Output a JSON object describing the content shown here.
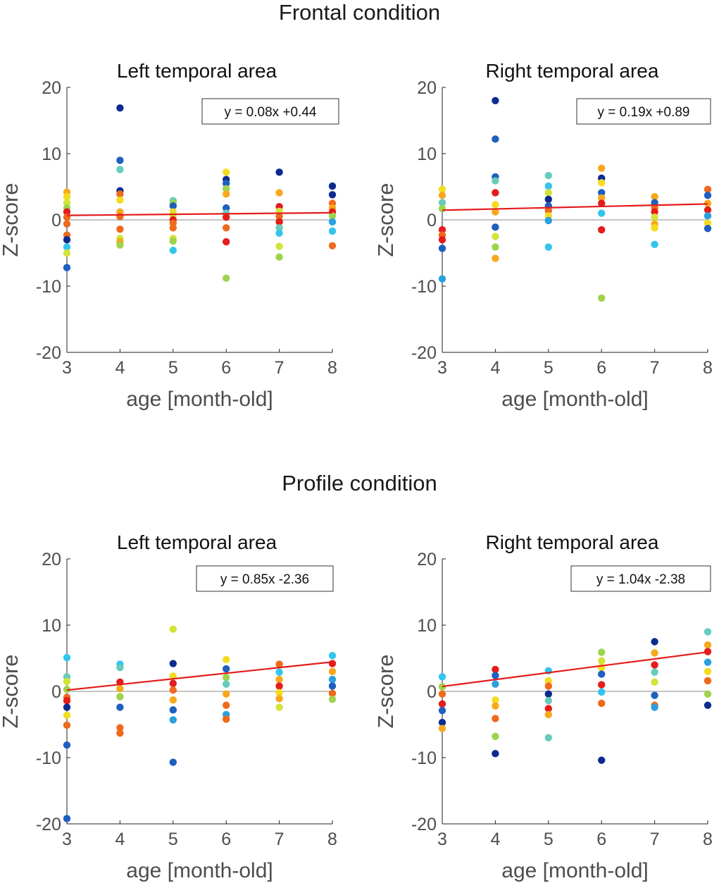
{
  "conditions": [
    "Frontal condition",
    "Profile condition"
  ],
  "palette": [
    "#0d2b8f",
    "#1f5fbf",
    "#2aa0de",
    "#33c5ec",
    "#66ccbb",
    "#9ed34d",
    "#d2e33a",
    "#f4dc1f",
    "#f7a81d",
    "#ee6a1d",
    "#e41c1c"
  ],
  "fit_line_color": "#e41c1c",
  "zero_line_color": "#b0b0b0",
  "chart_data": [
    {
      "type": "scatter",
      "condition": "Frontal condition",
      "title": "Left temporal area",
      "xlabel": "age [month-old]",
      "ylabel": "Z-score",
      "xlim": [
        3,
        8
      ],
      "ylim": [
        -20,
        20
      ],
      "xticks": [
        3,
        4,
        5,
        6,
        7,
        8
      ],
      "yticks": [
        20,
        10,
        0,
        -10,
        -20
      ],
      "equation": "y = 0.08x +0.44",
      "fit": {
        "slope": 0.08,
        "intercept": 0.44
      },
      "points": [
        {
          "x": 3,
          "y": 4.2,
          "c": 8
        },
        {
          "x": 3,
          "y": 3.5,
          "c": 7
        },
        {
          "x": 3,
          "y": 2.6,
          "c": 6
        },
        {
          "x": 3,
          "y": 1.8,
          "c": 5
        },
        {
          "x": 3,
          "y": 1.2,
          "c": 10
        },
        {
          "x": 3,
          "y": 0.4,
          "c": 9
        },
        {
          "x": 3,
          "y": -0.6,
          "c": 9
        },
        {
          "x": 3,
          "y": -2.3,
          "c": 9
        },
        {
          "x": 3,
          "y": -3.0,
          "c": 0
        },
        {
          "x": 3,
          "y": -4.1,
          "c": 3
        },
        {
          "x": 3,
          "y": -5.0,
          "c": 6
        },
        {
          "x": 3,
          "y": -7.2,
          "c": 1
        },
        {
          "x": 4,
          "y": 16.9,
          "c": 0
        },
        {
          "x": 4,
          "y": 9.0,
          "c": 1
        },
        {
          "x": 4,
          "y": 7.6,
          "c": 4
        },
        {
          "x": 4,
          "y": 4.4,
          "c": 0
        },
        {
          "x": 4,
          "y": 3.9,
          "c": 9
        },
        {
          "x": 4,
          "y": 3.0,
          "c": 7
        },
        {
          "x": 4,
          "y": 1.2,
          "c": 8
        },
        {
          "x": 4,
          "y": 0.5,
          "c": 9
        },
        {
          "x": 4,
          "y": -1.4,
          "c": 9
        },
        {
          "x": 4,
          "y": -2.8,
          "c": 6
        },
        {
          "x": 4,
          "y": -3.3,
          "c": 8
        },
        {
          "x": 4,
          "y": -3.8,
          "c": 5
        },
        {
          "x": 5,
          "y": 2.9,
          "c": 4
        },
        {
          "x": 5,
          "y": 2.5,
          "c": 5
        },
        {
          "x": 5,
          "y": 2.1,
          "c": 1
        },
        {
          "x": 5,
          "y": 1.2,
          "c": 7
        },
        {
          "x": 5,
          "y": 0.7,
          "c": 6
        },
        {
          "x": 5,
          "y": 0.0,
          "c": 10
        },
        {
          "x": 5,
          "y": -0.5,
          "c": 9
        },
        {
          "x": 5,
          "y": -1.2,
          "c": 9
        },
        {
          "x": 5,
          "y": -2.8,
          "c": 6
        },
        {
          "x": 5,
          "y": -3.2,
          "c": 5
        },
        {
          "x": 5,
          "y": -4.6,
          "c": 3
        },
        {
          "x": 6,
          "y": 7.2,
          "c": 7
        },
        {
          "x": 6,
          "y": 6.1,
          "c": 0
        },
        {
          "x": 6,
          "y": 5.5,
          "c": 1
        },
        {
          "x": 6,
          "y": 4.7,
          "c": 5
        },
        {
          "x": 6,
          "y": 3.9,
          "c": 8
        },
        {
          "x": 6,
          "y": 1.8,
          "c": 1
        },
        {
          "x": 6,
          "y": 1.0,
          "c": 4
        },
        {
          "x": 6,
          "y": 0.4,
          "c": 10
        },
        {
          "x": 6,
          "y": -1.2,
          "c": 9
        },
        {
          "x": 6,
          "y": -3.3,
          "c": 10
        },
        {
          "x": 6,
          "y": -8.8,
          "c": 5
        },
        {
          "x": 7,
          "y": 7.2,
          "c": 0
        },
        {
          "x": 7,
          "y": 4.1,
          "c": 8
        },
        {
          "x": 7,
          "y": 2.0,
          "c": 10
        },
        {
          "x": 7,
          "y": 1.3,
          "c": 6
        },
        {
          "x": 7,
          "y": 0.5,
          "c": 9
        },
        {
          "x": 7,
          "y": -0.3,
          "c": 10
        },
        {
          "x": 7,
          "y": -1.2,
          "c": 4
        },
        {
          "x": 7,
          "y": -2.0,
          "c": 3
        },
        {
          "x": 7,
          "y": -4.0,
          "c": 6
        },
        {
          "x": 7,
          "y": -5.6,
          "c": 5
        },
        {
          "x": 8,
          "y": 5.1,
          "c": 0
        },
        {
          "x": 8,
          "y": 3.8,
          "c": 0
        },
        {
          "x": 8,
          "y": 2.5,
          "c": 9
        },
        {
          "x": 8,
          "y": 1.8,
          "c": 8
        },
        {
          "x": 8,
          "y": 1.2,
          "c": 10
        },
        {
          "x": 8,
          "y": 0.6,
          "c": 5
        },
        {
          "x": 8,
          "y": -0.3,
          "c": 2
        },
        {
          "x": 8,
          "y": -1.7,
          "c": 3
        },
        {
          "x": 8,
          "y": -3.9,
          "c": 9
        }
      ]
    },
    {
      "type": "scatter",
      "condition": "Frontal condition",
      "title": "Right temporal area",
      "xlabel": "age [month-old]",
      "ylabel": "Z-score",
      "xlim": [
        3,
        8
      ],
      "ylim": [
        -20,
        20
      ],
      "xticks": [
        3,
        4,
        5,
        6,
        7,
        8
      ],
      "yticks": [
        20,
        10,
        0,
        -10,
        -20
      ],
      "equation": "y = 0.19x +0.89",
      "fit": {
        "slope": 0.19,
        "intercept": 0.89
      },
      "points": [
        {
          "x": 3,
          "y": 4.6,
          "c": 7
        },
        {
          "x": 3,
          "y": 3.7,
          "c": 8
        },
        {
          "x": 3,
          "y": 2.6,
          "c": 4
        },
        {
          "x": 3,
          "y": 1.7,
          "c": 5
        },
        {
          "x": 3,
          "y": -1.5,
          "c": 10
        },
        {
          "x": 3,
          "y": -2.3,
          "c": 9
        },
        {
          "x": 3,
          "y": -3.0,
          "c": 10
        },
        {
          "x": 3,
          "y": -4.3,
          "c": 1
        },
        {
          "x": 3,
          "y": -8.9,
          "c": 2
        },
        {
          "x": 4,
          "y": 18.0,
          "c": 0
        },
        {
          "x": 4,
          "y": 12.2,
          "c": 1
        },
        {
          "x": 4,
          "y": 6.5,
          "c": 1
        },
        {
          "x": 4,
          "y": 5.9,
          "c": 4
        },
        {
          "x": 4,
          "y": 4.1,
          "c": 10
        },
        {
          "x": 4,
          "y": 2.3,
          "c": 7
        },
        {
          "x": 4,
          "y": 1.2,
          "c": 8
        },
        {
          "x": 4,
          "y": -1.1,
          "c": 1
        },
        {
          "x": 4,
          "y": -2.5,
          "c": 6
        },
        {
          "x": 4,
          "y": -4.1,
          "c": 5
        },
        {
          "x": 4,
          "y": -5.8,
          "c": 8
        },
        {
          "x": 5,
          "y": 6.7,
          "c": 4
        },
        {
          "x": 5,
          "y": 5.1,
          "c": 3
        },
        {
          "x": 5,
          "y": 4.1,
          "c": 6
        },
        {
          "x": 5,
          "y": 3.1,
          "c": 0
        },
        {
          "x": 5,
          "y": 2.1,
          "c": 1
        },
        {
          "x": 5,
          "y": 1.4,
          "c": 9
        },
        {
          "x": 5,
          "y": 0.6,
          "c": 7
        },
        {
          "x": 5,
          "y": -0.1,
          "c": 2
        },
        {
          "x": 5,
          "y": -4.1,
          "c": 3
        },
        {
          "x": 6,
          "y": 7.8,
          "c": 8
        },
        {
          "x": 6,
          "y": 6.3,
          "c": 0
        },
        {
          "x": 6,
          "y": 5.6,
          "c": 7
        },
        {
          "x": 6,
          "y": 4.1,
          "c": 1
        },
        {
          "x": 6,
          "y": 3.3,
          "c": 8
        },
        {
          "x": 6,
          "y": 2.5,
          "c": 10
        },
        {
          "x": 6,
          "y": 1.0,
          "c": 3
        },
        {
          "x": 6,
          "y": -1.5,
          "c": 10
        },
        {
          "x": 6,
          "y": -11.8,
          "c": 5
        },
        {
          "x": 7,
          "y": 3.5,
          "c": 8
        },
        {
          "x": 7,
          "y": 2.6,
          "c": 1
        },
        {
          "x": 7,
          "y": 1.8,
          "c": 9
        },
        {
          "x": 7,
          "y": 1.2,
          "c": 10
        },
        {
          "x": 7,
          "y": 0.4,
          "c": 6
        },
        {
          "x": 7,
          "y": -0.6,
          "c": 8
        },
        {
          "x": 7,
          "y": -1.2,
          "c": 7
        },
        {
          "x": 7,
          "y": -3.7,
          "c": 3
        },
        {
          "x": 8,
          "y": 4.6,
          "c": 9
        },
        {
          "x": 8,
          "y": 3.7,
          "c": 1
        },
        {
          "x": 8,
          "y": 2.5,
          "c": 8
        },
        {
          "x": 8,
          "y": 1.5,
          "c": 10
        },
        {
          "x": 8,
          "y": 0.6,
          "c": 2
        },
        {
          "x": 8,
          "y": -0.5,
          "c": 7
        },
        {
          "x": 8,
          "y": -1.3,
          "c": 1
        }
      ]
    },
    {
      "type": "scatter",
      "condition": "Profile condition",
      "title": "Left temporal area",
      "xlabel": "age [month-old]",
      "ylabel": "Z-score",
      "xlim": [
        3,
        8
      ],
      "ylim": [
        -20,
        20
      ],
      "xticks": [
        3,
        4,
        5,
        6,
        7,
        8
      ],
      "yticks": [
        20,
        10,
        0,
        -10,
        -20
      ],
      "equation": "y = 0.85x -2.36",
      "fit": {
        "slope": 0.85,
        "intercept": -2.36
      },
      "points": [
        {
          "x": 3,
          "y": 5.1,
          "c": 3
        },
        {
          "x": 3,
          "y": 2.2,
          "c": 4
        },
        {
          "x": 3,
          "y": 1.5,
          "c": 6
        },
        {
          "x": 3,
          "y": 0.3,
          "c": 5
        },
        {
          "x": 3,
          "y": -0.9,
          "c": 9
        },
        {
          "x": 3,
          "y": -1.4,
          "c": 10
        },
        {
          "x": 3,
          "y": -2.4,
          "c": 0
        },
        {
          "x": 3,
          "y": -3.6,
          "c": 7
        },
        {
          "x": 3,
          "y": -5.1,
          "c": 9
        },
        {
          "x": 3,
          "y": -8.1,
          "c": 1
        },
        {
          "x": 3,
          "y": -19.2,
          "c": 1
        },
        {
          "x": 4,
          "y": 4.1,
          "c": 3
        },
        {
          "x": 4,
          "y": 3.6,
          "c": 4
        },
        {
          "x": 4,
          "y": 1.4,
          "c": 10
        },
        {
          "x": 4,
          "y": 0.4,
          "c": 8
        },
        {
          "x": 4,
          "y": -0.8,
          "c": 5
        },
        {
          "x": 4,
          "y": -2.4,
          "c": 1
        },
        {
          "x": 4,
          "y": -5.5,
          "c": 9
        },
        {
          "x": 4,
          "y": -6.3,
          "c": 9
        },
        {
          "x": 5,
          "y": 9.4,
          "c": 6
        },
        {
          "x": 5,
          "y": 4.2,
          "c": 0
        },
        {
          "x": 5,
          "y": 2.3,
          "c": 7
        },
        {
          "x": 5,
          "y": 1.2,
          "c": 10
        },
        {
          "x": 5,
          "y": 0.2,
          "c": 9
        },
        {
          "x": 5,
          "y": -1.3,
          "c": 8
        },
        {
          "x": 5,
          "y": -2.8,
          "c": 1
        },
        {
          "x": 5,
          "y": -4.3,
          "c": 2
        },
        {
          "x": 5,
          "y": -10.7,
          "c": 1
        },
        {
          "x": 6,
          "y": 4.8,
          "c": 7
        },
        {
          "x": 6,
          "y": 3.4,
          "c": 1
        },
        {
          "x": 6,
          "y": 2.1,
          "c": 5
        },
        {
          "x": 6,
          "y": 1.1,
          "c": 4
        },
        {
          "x": 6,
          "y": -0.4,
          "c": 8
        },
        {
          "x": 6,
          "y": -2.1,
          "c": 9
        },
        {
          "x": 6,
          "y": -3.5,
          "c": 2
        },
        {
          "x": 6,
          "y": -4.2,
          "c": 9
        },
        {
          "x": 7,
          "y": 4.1,
          "c": 9
        },
        {
          "x": 7,
          "y": 2.9,
          "c": 3
        },
        {
          "x": 7,
          "y": 1.8,
          "c": 8
        },
        {
          "x": 7,
          "y": 0.8,
          "c": 10
        },
        {
          "x": 7,
          "y": -0.2,
          "c": 7
        },
        {
          "x": 7,
          "y": -1.1,
          "c": 8
        },
        {
          "x": 7,
          "y": -2.4,
          "c": 6
        },
        {
          "x": 8,
          "y": 5.4,
          "c": 3
        },
        {
          "x": 8,
          "y": 4.2,
          "c": 10
        },
        {
          "x": 8,
          "y": 3.0,
          "c": 8
        },
        {
          "x": 8,
          "y": 1.8,
          "c": 2
        },
        {
          "x": 8,
          "y": 0.8,
          "c": 1
        },
        {
          "x": 8,
          "y": -0.3,
          "c": 9
        },
        {
          "x": 8,
          "y": -1.2,
          "c": 5
        }
      ]
    },
    {
      "type": "scatter",
      "condition": "Profile condition",
      "title": "Right temporal area",
      "xlabel": "age [month-old]",
      "ylabel": "Z-score",
      "xlim": [
        3,
        8
      ],
      "ylim": [
        -20,
        20
      ],
      "xticks": [
        3,
        4,
        5,
        6,
        7,
        8
      ],
      "yticks": [
        20,
        10,
        0,
        -10,
        -20
      ],
      "equation": "y = 1.04x -2.38",
      "fit": {
        "slope": 1.04,
        "intercept": -2.38
      },
      "points": [
        {
          "x": 3,
          "y": 2.2,
          "c": 3
        },
        {
          "x": 3,
          "y": 0.7,
          "c": 5
        },
        {
          "x": 3,
          "y": -0.4,
          "c": 9
        },
        {
          "x": 3,
          "y": -1.9,
          "c": 10
        },
        {
          "x": 3,
          "y": -2.9,
          "c": 1
        },
        {
          "x": 3,
          "y": -4.7,
          "c": 0
        },
        {
          "x": 3,
          "y": -5.6,
          "c": 8
        },
        {
          "x": 4,
          "y": 3.3,
          "c": 10
        },
        {
          "x": 4,
          "y": 2.4,
          "c": 1
        },
        {
          "x": 4,
          "y": 1.1,
          "c": 2
        },
        {
          "x": 4,
          "y": -1.3,
          "c": 7
        },
        {
          "x": 4,
          "y": -2.2,
          "c": 8
        },
        {
          "x": 4,
          "y": -4.1,
          "c": 9
        },
        {
          "x": 4,
          "y": -6.8,
          "c": 5
        },
        {
          "x": 4,
          "y": -9.4,
          "c": 0
        },
        {
          "x": 5,
          "y": 3.1,
          "c": 3
        },
        {
          "x": 5,
          "y": 1.6,
          "c": 7
        },
        {
          "x": 5,
          "y": 0.8,
          "c": 9
        },
        {
          "x": 5,
          "y": -0.4,
          "c": 0
        },
        {
          "x": 5,
          "y": -1.4,
          "c": 4
        },
        {
          "x": 5,
          "y": -2.6,
          "c": 10
        },
        {
          "x": 5,
          "y": -3.5,
          "c": 8
        },
        {
          "x": 5,
          "y": -7.0,
          "c": 4
        },
        {
          "x": 6,
          "y": 5.9,
          "c": 5
        },
        {
          "x": 6,
          "y": 4.6,
          "c": 6
        },
        {
          "x": 6,
          "y": 3.6,
          "c": 7
        },
        {
          "x": 6,
          "y": 2.6,
          "c": 1
        },
        {
          "x": 6,
          "y": 1.0,
          "c": 10
        },
        {
          "x": 6,
          "y": -0.1,
          "c": 3
        },
        {
          "x": 6,
          "y": -1.8,
          "c": 9
        },
        {
          "x": 6,
          "y": -10.4,
          "c": 0
        },
        {
          "x": 7,
          "y": 7.5,
          "c": 0
        },
        {
          "x": 7,
          "y": 5.8,
          "c": 8
        },
        {
          "x": 7,
          "y": 4.0,
          "c": 10
        },
        {
          "x": 7,
          "y": 2.9,
          "c": 4
        },
        {
          "x": 7,
          "y": 1.4,
          "c": 6
        },
        {
          "x": 7,
          "y": -0.6,
          "c": 1
        },
        {
          "x": 7,
          "y": -2.1,
          "c": 9
        },
        {
          "x": 7,
          "y": -2.4,
          "c": 2
        },
        {
          "x": 8,
          "y": 9.0,
          "c": 4
        },
        {
          "x": 8,
          "y": 7.0,
          "c": 8
        },
        {
          "x": 8,
          "y": 6.0,
          "c": 10
        },
        {
          "x": 8,
          "y": 4.4,
          "c": 2
        },
        {
          "x": 8,
          "y": 3.0,
          "c": 7
        },
        {
          "x": 8,
          "y": 1.6,
          "c": 9
        },
        {
          "x": 8,
          "y": -0.4,
          "c": 5
        },
        {
          "x": 8,
          "y": -2.1,
          "c": 0
        }
      ]
    }
  ]
}
